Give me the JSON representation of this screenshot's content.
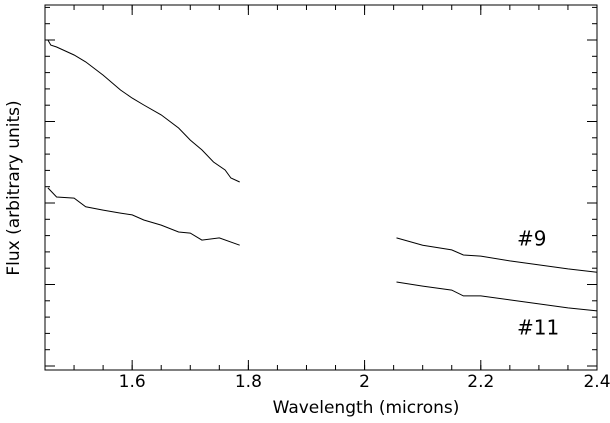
{
  "chart_data": {
    "type": "line",
    "x_label": "Wavelength (microns)",
    "y_label": "Flux (arbitrary units)",
    "xlim": [
      1.45,
      2.4
    ],
    "xticks": [
      1.6,
      1.8,
      2,
      2.2,
      2.4
    ],
    "ylim": [
      0,
      100
    ],
    "series": [
      {
        "name": "#9",
        "color": "#000000",
        "x": [
          1.455,
          1.46,
          1.47,
          1.5,
          1.52,
          1.55,
          1.58,
          1.6,
          1.62,
          1.65,
          1.68,
          1.7,
          1.72,
          1.74,
          1.76,
          1.77,
          1.785,
          1.92,
          2.055,
          2.1,
          2.15,
          2.17,
          2.2,
          2.25,
          2.3,
          2.35,
          2.4
        ],
        "values": [
          90.4,
          89.0,
          88.5,
          86.3,
          84.4,
          80.8,
          76.7,
          74.5,
          72.6,
          69.9,
          66.3,
          63.0,
          60.3,
          57.0,
          54.8,
          52.6,
          51.5,
          null,
          36.2,
          34.2,
          32.9,
          31.5,
          31.2,
          29.9,
          28.8,
          27.7,
          26.8
        ]
      },
      {
        "name": "#11",
        "color": "#000000",
        "x": [
          1.455,
          1.47,
          1.5,
          1.52,
          1.55,
          1.58,
          1.6,
          1.62,
          1.65,
          1.68,
          1.7,
          1.72,
          1.75,
          1.785,
          1.92,
          2.055,
          2.1,
          2.15,
          2.17,
          2.2,
          2.25,
          2.3,
          2.35,
          2.4
        ],
        "values": [
          49.9,
          47.4,
          47.1,
          44.7,
          43.8,
          43.0,
          42.5,
          41.1,
          39.7,
          37.8,
          37.5,
          35.6,
          36.2,
          34.2,
          null,
          24.1,
          23.0,
          21.9,
          20.3,
          20.3,
          19.2,
          18.1,
          17.0,
          16.2
        ]
      }
    ]
  }
}
